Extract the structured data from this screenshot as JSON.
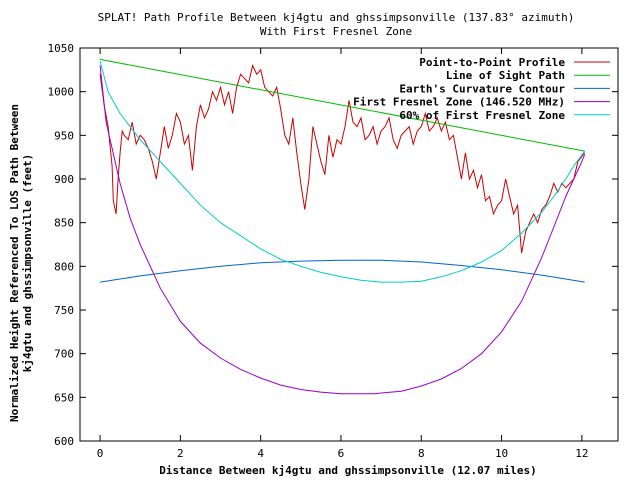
{
  "chart_data": {
    "type": "line",
    "title": "SPLAT! Path Profile Between kj4gtu and ghssimpsonville (137.83° azimuth)",
    "subtitle": "With First Fresnel Zone",
    "xlabel": "Distance Between kj4gtu and ghssimpsonville (12.07 miles)",
    "ylabel": [
      "Normalized Height Referenced To LOS Path Between",
      "kj4gtu and ghssimpsonville (feet)"
    ],
    "xlim": [
      -0.5,
      12.9
    ],
    "ylim": [
      600,
      1050
    ],
    "xticks": [
      0,
      2,
      4,
      6,
      8,
      10,
      12
    ],
    "yticks": [
      600,
      650,
      700,
      750,
      800,
      850,
      900,
      950,
      1000,
      1050
    ],
    "grid": false,
    "legend_position": "top-right",
    "series": [
      {
        "name": "Point-to-Point Profile",
        "color": "#cc0000",
        "x": [
          0.0,
          0.1,
          0.2,
          0.3,
          0.33,
          0.4,
          0.45,
          0.5,
          0.55,
          0.6,
          0.7,
          0.8,
          0.9,
          1.0,
          1.1,
          1.2,
          1.3,
          1.4,
          1.5,
          1.6,
          1.7,
          1.8,
          1.9,
          2.0,
          2.1,
          2.2,
          2.3,
          2.4,
          2.5,
          2.6,
          2.7,
          2.8,
          2.9,
          3.0,
          3.1,
          3.2,
          3.3,
          3.4,
          3.5,
          3.6,
          3.7,
          3.8,
          3.9,
          4.0,
          4.1,
          4.2,
          4.3,
          4.4,
          4.5,
          4.6,
          4.7,
          4.8,
          4.9,
          5.0,
          5.1,
          5.2,
          5.3,
          5.4,
          5.5,
          5.6,
          5.7,
          5.8,
          5.9,
          6.0,
          6.1,
          6.2,
          6.3,
          6.4,
          6.5,
          6.6,
          6.7,
          6.8,
          6.9,
          7.0,
          7.1,
          7.2,
          7.3,
          7.4,
          7.5,
          7.6,
          7.7,
          7.8,
          7.9,
          8.0,
          8.1,
          8.2,
          8.3,
          8.4,
          8.5,
          8.6,
          8.7,
          8.8,
          8.9,
          9.0,
          9.1,
          9.2,
          9.3,
          9.4,
          9.5,
          9.6,
          9.7,
          9.8,
          9.9,
          10.0,
          10.1,
          10.2,
          10.3,
          10.4,
          10.5,
          10.6,
          10.7,
          10.8,
          10.9,
          11.0,
          11.1,
          11.2,
          11.3,
          11.4,
          11.5,
          11.6,
          11.7,
          11.8,
          11.9,
          12.07
        ],
        "y": [
          1020,
          985,
          960,
          915,
          875,
          860,
          900,
          930,
          955,
          950,
          945,
          965,
          940,
          950,
          945,
          935,
          920,
          900,
          930,
          960,
          935,
          950,
          975,
          965,
          940,
          950,
          910,
          960,
          985,
          970,
          980,
          1000,
          990,
          1005,
          985,
          1000,
          975,
          1005,
          1020,
          1015,
          1010,
          1030,
          1020,
          1025,
          1005,
          1000,
          995,
          1005,
          980,
          950,
          940,
          970,
          930,
          895,
          865,
          900,
          960,
          940,
          920,
          905,
          950,
          925,
          945,
          940,
          960,
          990,
          965,
          960,
          970,
          945,
          950,
          960,
          940,
          955,
          960,
          970,
          945,
          935,
          950,
          955,
          960,
          940,
          955,
          960,
          975,
          955,
          960,
          970,
          955,
          965,
          945,
          950,
          925,
          900,
          930,
          900,
          910,
          890,
          905,
          875,
          880,
          860,
          870,
          875,
          900,
          880,
          860,
          870,
          815,
          840,
          850,
          860,
          850,
          865,
          870,
          880,
          895,
          885,
          895,
          890,
          895,
          900,
          920,
          930
        ],
        "data_labels": false
      },
      {
        "name": "Line of Sight Path",
        "color": "#00bb00",
        "x": [
          0.0,
          12.07
        ],
        "y": [
          1037,
          932
        ]
      },
      {
        "name": "Earth's Curvature Contour",
        "color": "#0066cc",
        "x": [
          0.0,
          1.0,
          2.0,
          3.0,
          4.0,
          5.0,
          6.0,
          6.5,
          7.0,
          8.0,
          9.0,
          10.0,
          11.0,
          12.07
        ],
        "y": [
          782,
          789,
          795,
          800,
          804,
          806,
          807,
          807,
          807,
          805,
          801,
          796,
          790,
          782
        ]
      },
      {
        "name": "First Fresnel Zone (146.520 MHz)",
        "color": "#9900cc",
        "x": [
          0.0,
          0.15,
          0.3,
          0.5,
          0.75,
          1.0,
          1.5,
          2.0,
          2.5,
          3.0,
          3.5,
          4.0,
          4.5,
          5.0,
          5.5,
          6.0,
          6.5,
          6.85,
          7.0,
          7.5,
          8.0,
          8.5,
          9.0,
          9.5,
          10.0,
          10.5,
          11.0,
          11.3,
          11.6,
          11.8,
          11.95,
          12.07
        ],
        "y": [
          1030,
          965,
          935,
          895,
          855,
          825,
          775,
          737,
          712,
          695,
          682,
          672,
          664,
          659,
          656,
          654,
          654,
          654,
          655,
          657,
          663,
          671,
          683,
          700,
          725,
          760,
          810,
          845,
          880,
          900,
          915,
          928
        ]
      },
      {
        "name": "60% of First Fresnel Zone",
        "color": "#00cccc",
        "x": [
          0.0,
          0.2,
          0.5,
          1.0,
          1.5,
          2.0,
          2.5,
          3.0,
          3.5,
          4.0,
          4.5,
          5.0,
          5.5,
          6.0,
          6.5,
          7.0,
          7.5,
          8.0,
          8.5,
          9.0,
          9.5,
          10.0,
          10.5,
          11.0,
          11.3,
          11.6,
          11.8,
          12.07
        ],
        "y": [
          1035,
          1000,
          975,
          945,
          920,
          895,
          870,
          850,
          835,
          820,
          808,
          800,
          793,
          788,
          784,
          782,
          782,
          783,
          788,
          795,
          805,
          818,
          838,
          862,
          880,
          900,
          915,
          932
        ]
      }
    ]
  }
}
